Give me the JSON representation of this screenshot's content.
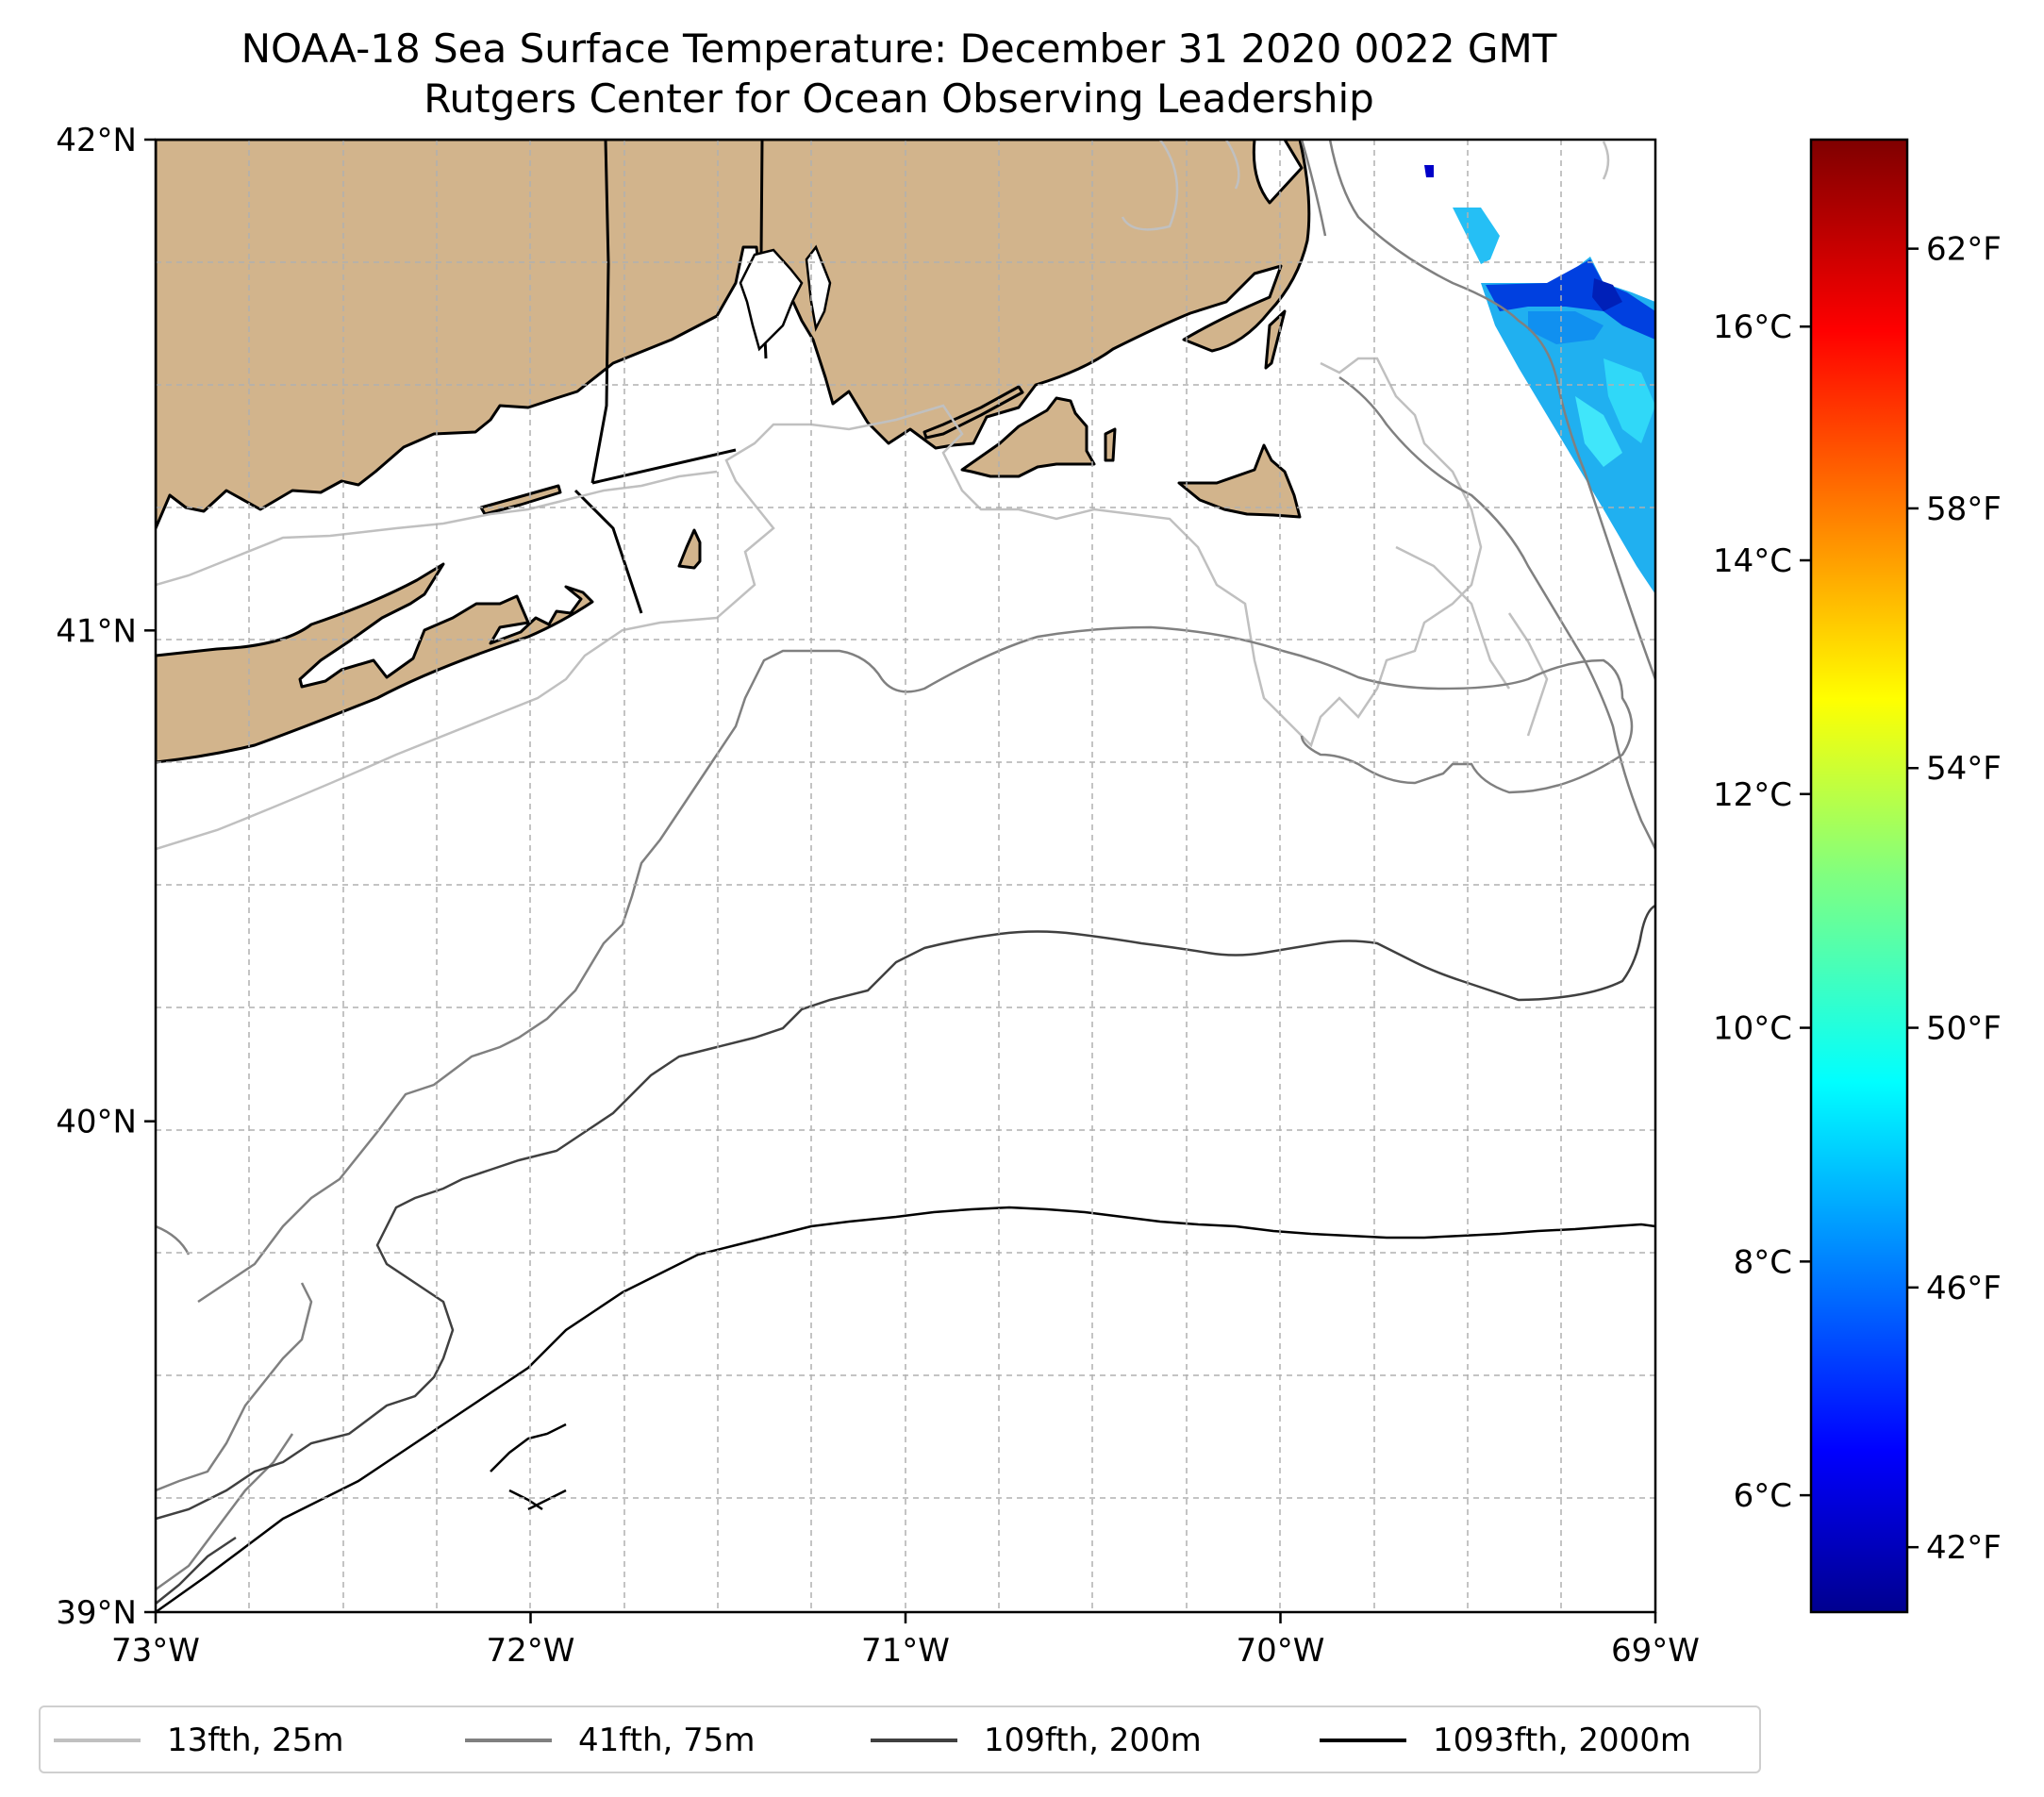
{
  "title": {
    "line1": "NOAA-18 Sea Surface Temperature: December 31 2020 0022 GMT",
    "line2": "Rutgers Center for Ocean Observing Leadership"
  },
  "map": {
    "lon_range": [
      -73,
      -69
    ],
    "lat_range": [
      39,
      42
    ],
    "x_ticks": [
      {
        "value": -73,
        "label": "73°W"
      },
      {
        "value": -72,
        "label": "72°W"
      },
      {
        "value": -71,
        "label": "71°W"
      },
      {
        "value": -70,
        "label": "70°W"
      },
      {
        "value": -69,
        "label": "69°W"
      }
    ],
    "y_ticks": [
      {
        "value": 42,
        "label": "42°N"
      },
      {
        "value": 41,
        "label": "41°N"
      },
      {
        "value": 40,
        "label": "40°N"
      },
      {
        "value": 39,
        "label": "39°N"
      }
    ],
    "grid": "dashed",
    "land_color": "#d2b48c",
    "places": [
      "Long Island",
      "Connecticut",
      "Rhode Island",
      "Massachusetts",
      "Cape Cod",
      "Martha's Vineyard",
      "Nantucket",
      "Block Island"
    ]
  },
  "colorbar": {
    "colormap": "jet",
    "celsius_ticks": [
      {
        "value": 6,
        "label": "6°C"
      },
      {
        "value": 8,
        "label": "8°C"
      },
      {
        "value": 10,
        "label": "10°C"
      },
      {
        "value": 12,
        "label": "12°C"
      },
      {
        "value": 14,
        "label": "14°C"
      },
      {
        "value": 16,
        "label": "16°C"
      }
    ],
    "fahrenheit_ticks": [
      {
        "value": 42,
        "label": "42°F"
      },
      {
        "value": 46,
        "label": "46°F"
      },
      {
        "value": 50,
        "label": "50°F"
      },
      {
        "value": 54,
        "label": "54°F"
      },
      {
        "value": 58,
        "label": "58°F"
      },
      {
        "value": 62,
        "label": "62°F"
      }
    ],
    "range_celsius": [
      5.0,
      17.6
    ]
  },
  "legend": {
    "items": [
      {
        "label": "13fth, 25m",
        "color": "#c0c0c0"
      },
      {
        "label": "41fth, 75m",
        "color": "#808080"
      },
      {
        "label": "109fth, 200m",
        "color": "#404040"
      },
      {
        "label": "1093fth, 2000m",
        "color": "#000000"
      }
    ]
  },
  "colors": {
    "land": "#d2b48c",
    "grid": "#b0b0b0"
  }
}
